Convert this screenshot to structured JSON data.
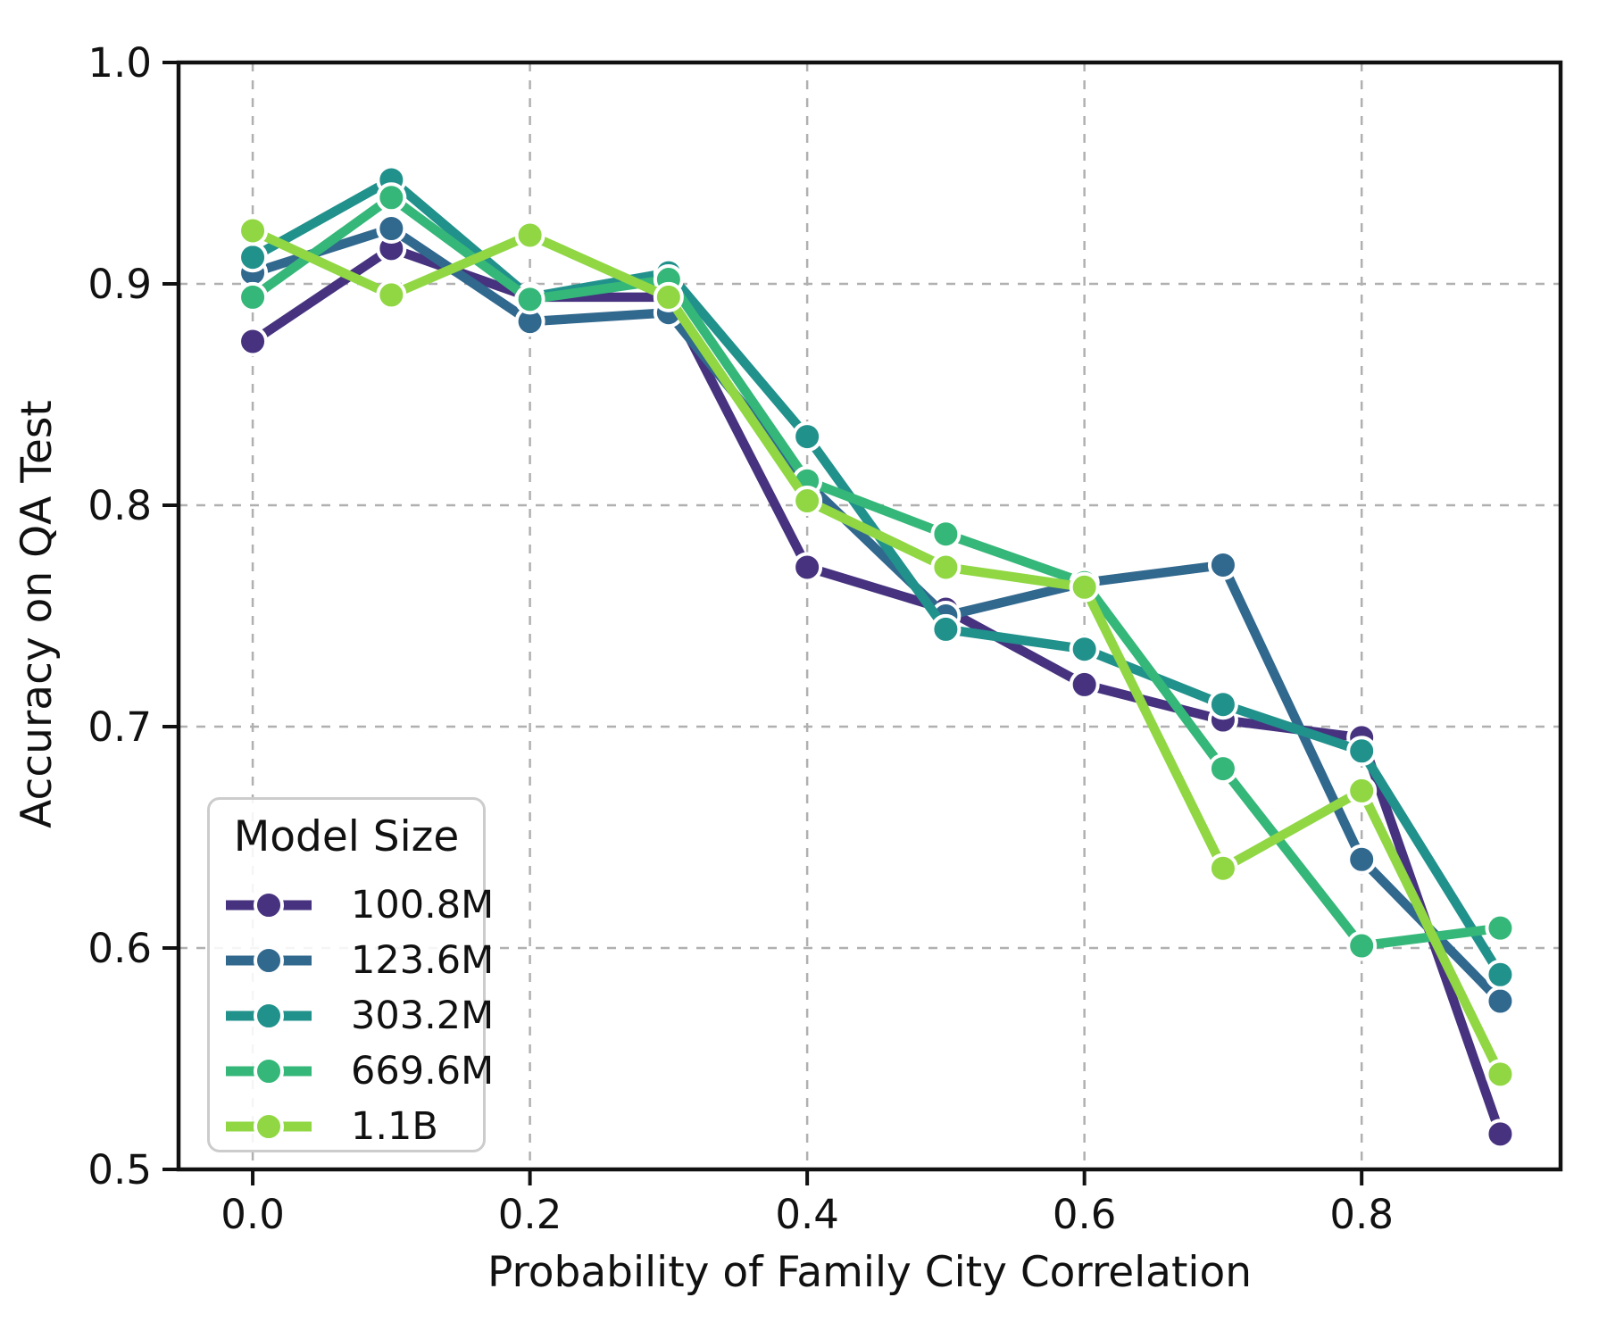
{
  "figure": {
    "xlabel": "Probability of Family City Correlation",
    "ylabel": "Accuracy on QA Test",
    "background": "#ffffff",
    "grid_color": "#b0b0b0",
    "axis_color": "#111111"
  },
  "legend": {
    "title": "Model Size",
    "position": "lower-left"
  },
  "chart_data": {
    "type": "line",
    "title": "",
    "xlabel": "Probability of Family City Correlation",
    "ylabel": "Accuracy on QA Test",
    "x": [
      0.0,
      0.1,
      0.2,
      0.3,
      0.4,
      0.5,
      0.6,
      0.7,
      0.8,
      0.9
    ],
    "series": [
      {
        "name": "100.8M",
        "color": "#46327e",
        "values": [
          0.874,
          0.916,
          0.894,
          0.894,
          0.772,
          0.753,
          0.719,
          0.703,
          0.695,
          0.516
        ]
      },
      {
        "name": "123.6M",
        "color": "#31688e",
        "values": [
          0.905,
          0.925,
          0.883,
          0.887,
          0.81,
          0.75,
          0.765,
          0.773,
          0.64,
          0.576
        ]
      },
      {
        "name": "303.2M",
        "color": "#21918c",
        "values": [
          0.912,
          0.947,
          0.894,
          0.905,
          0.831,
          0.744,
          0.735,
          0.71,
          0.689,
          0.588
        ]
      },
      {
        "name": "669.6M",
        "color": "#35b779",
        "values": [
          0.894,
          0.939,
          0.893,
          0.902,
          0.811,
          0.787,
          0.765,
          0.681,
          0.601,
          0.609
        ]
      },
      {
        "name": "1.1B",
        "color": "#90d743",
        "values": [
          0.924,
          0.895,
          0.922,
          0.894,
          0.802,
          0.772,
          0.763,
          0.636,
          0.671,
          0.543
        ]
      }
    ],
    "xlim": [
      -0.0535,
      0.9435
    ],
    "ylim": [
      0.5,
      1.0
    ],
    "xticks": {
      "values": [
        0.0,
        0.2,
        0.4,
        0.6,
        0.8
      ],
      "labels": [
        "0.0",
        "0.2",
        "0.4",
        "0.6",
        "0.8"
      ]
    },
    "yticks": {
      "values": [
        0.5,
        0.6,
        0.7,
        0.8,
        0.9,
        1.0
      ],
      "labels": [
        "0.5",
        "0.6",
        "0.7",
        "0.8",
        "0.9",
        "1.0"
      ]
    },
    "grid": true,
    "legend_title": "Model Size",
    "legend_position": "lower-left"
  }
}
